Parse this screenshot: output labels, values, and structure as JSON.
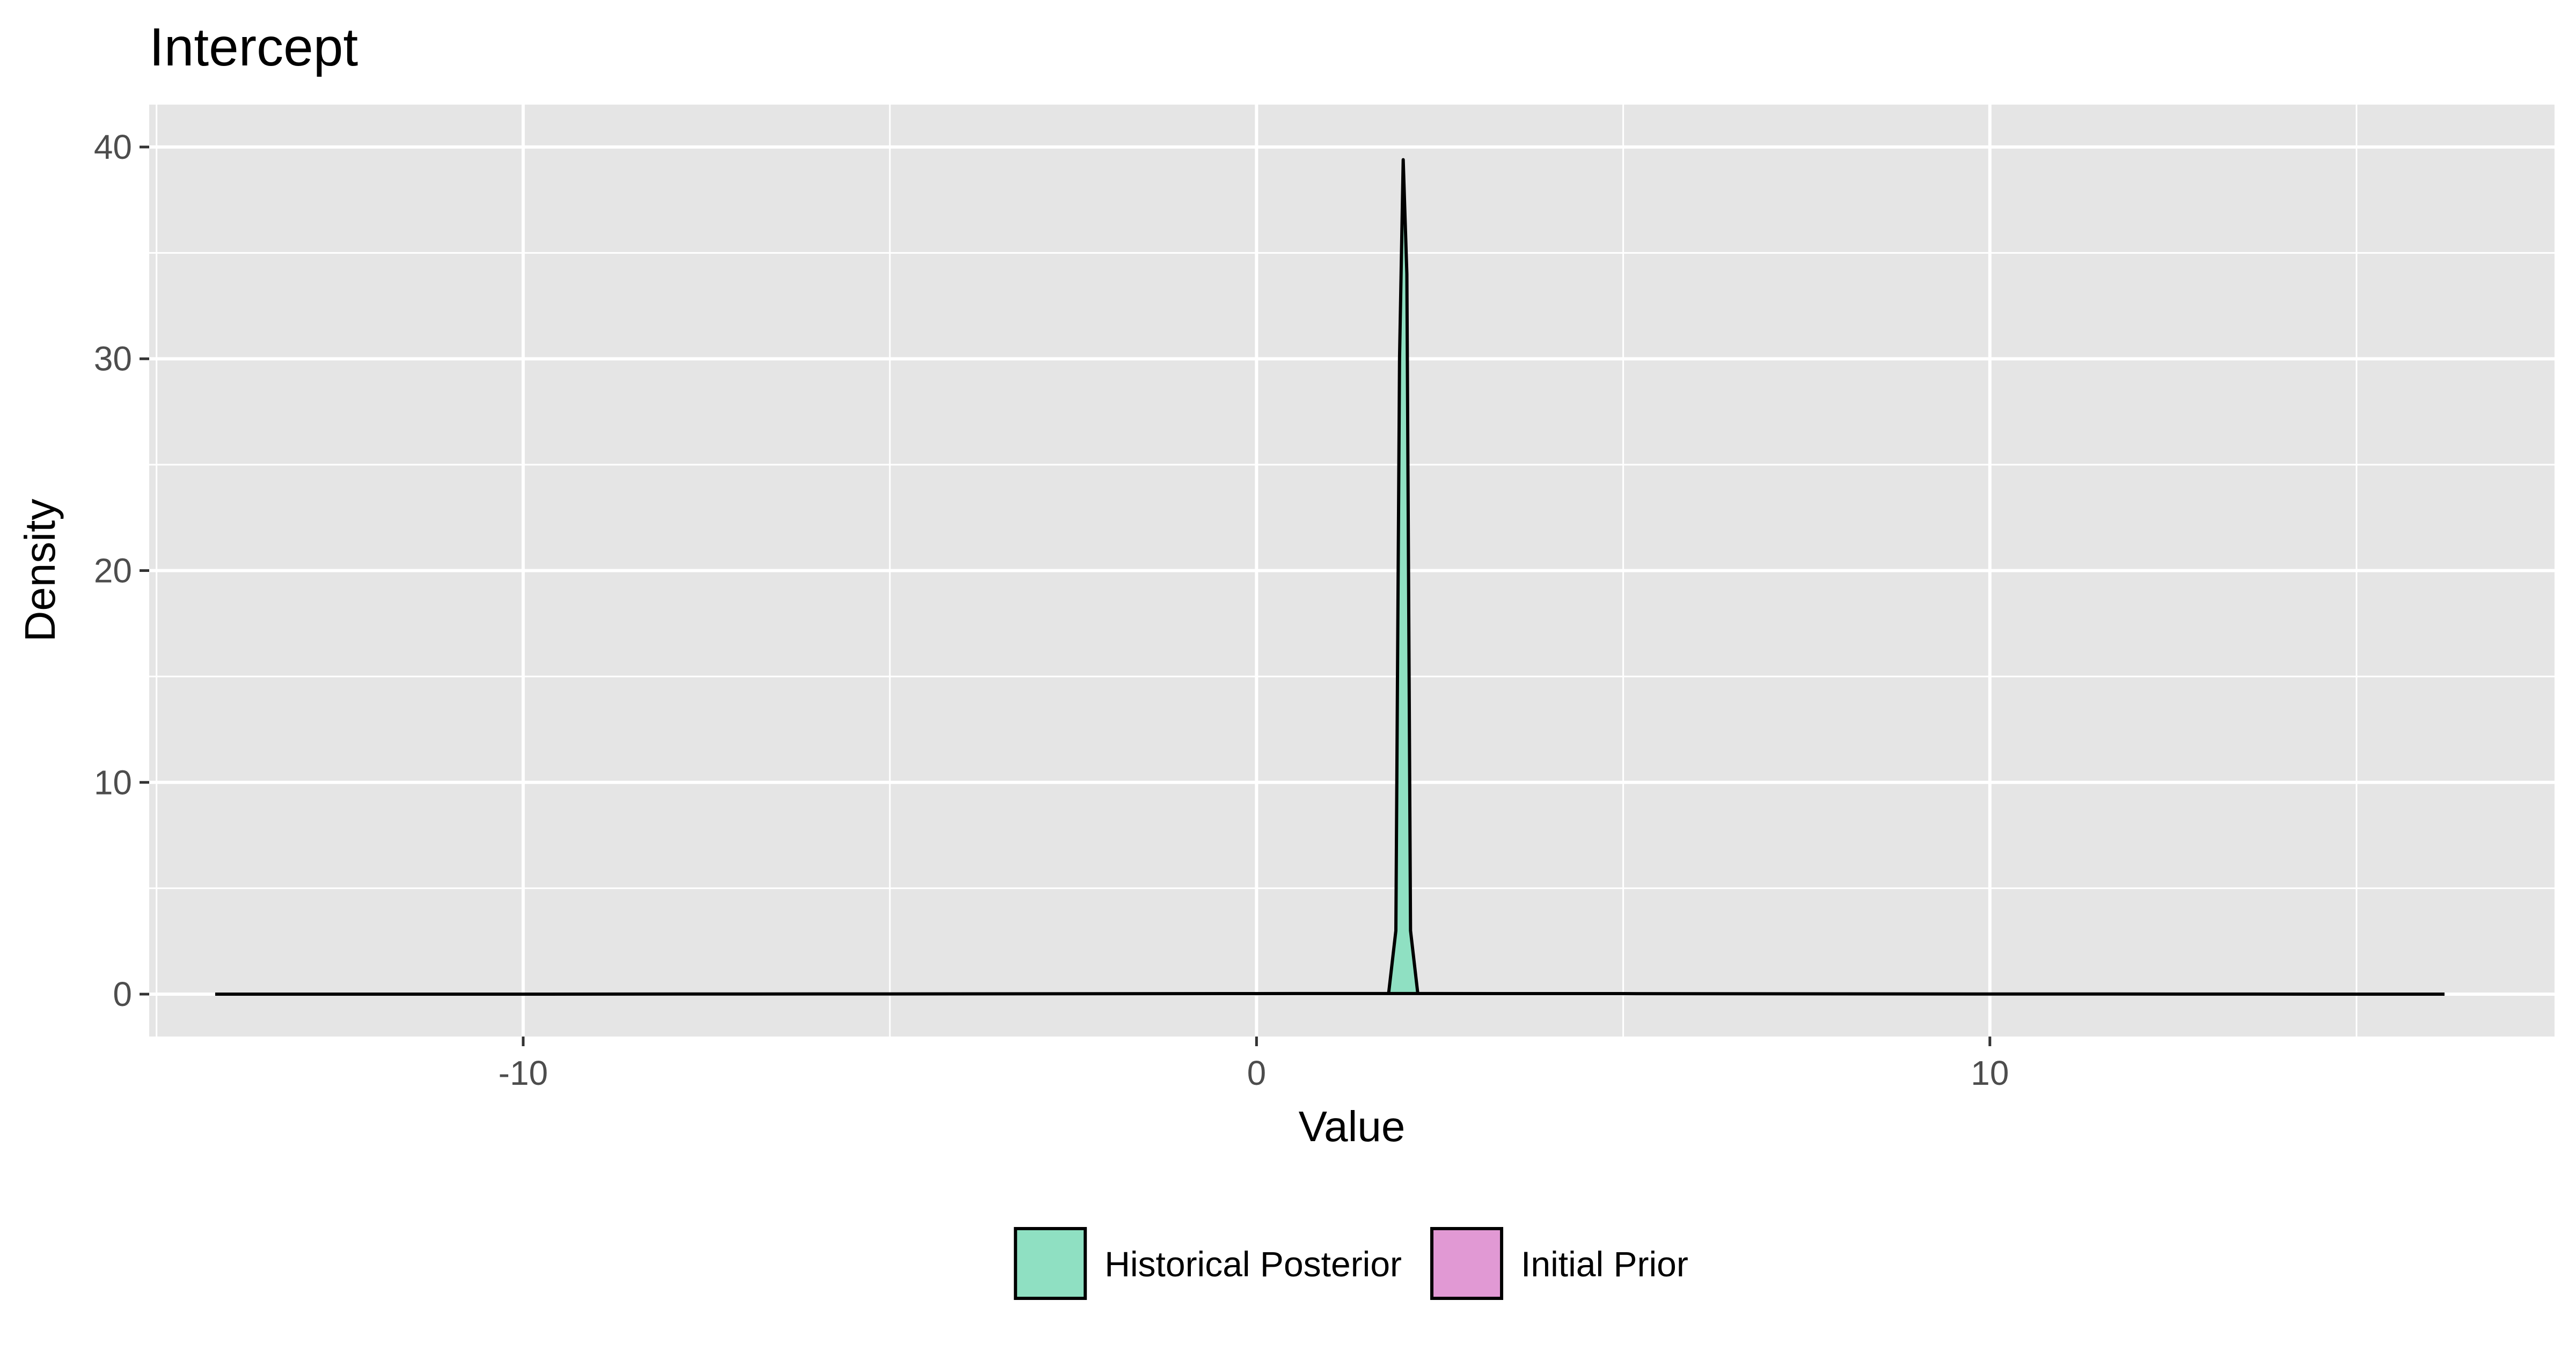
{
  "chart_data": {
    "type": "area",
    "title": "Intercept",
    "xlabel": "Value",
    "ylabel": "Density",
    "xlim": [
      -15.1,
      17.7
    ],
    "ylim": [
      -2,
      42
    ],
    "x_ticks": [
      -10,
      0,
      10
    ],
    "y_ticks": [
      0,
      10,
      20,
      30,
      40
    ],
    "grid": true,
    "legend_position": "bottom",
    "series": [
      {
        "name": "Historical Posterior",
        "color": "#8fe0c2",
        "x": [
          1.8,
          1.9,
          1.95,
          2.0,
          2.05,
          2.1,
          2.2
        ],
        "y": [
          0,
          3.0,
          30.0,
          39.4,
          34.0,
          3.0,
          0
        ]
      },
      {
        "name": "Initial Prior",
        "color": "#e199d4",
        "x": [
          -14.2,
          -10,
          -5,
          0,
          1.9,
          5,
          10,
          15,
          16.2
        ],
        "y": [
          0.0005,
          0.002,
          0.012,
          0.028,
          0.03,
          0.025,
          0.008,
          0.002,
          0.0005
        ]
      }
    ]
  }
}
